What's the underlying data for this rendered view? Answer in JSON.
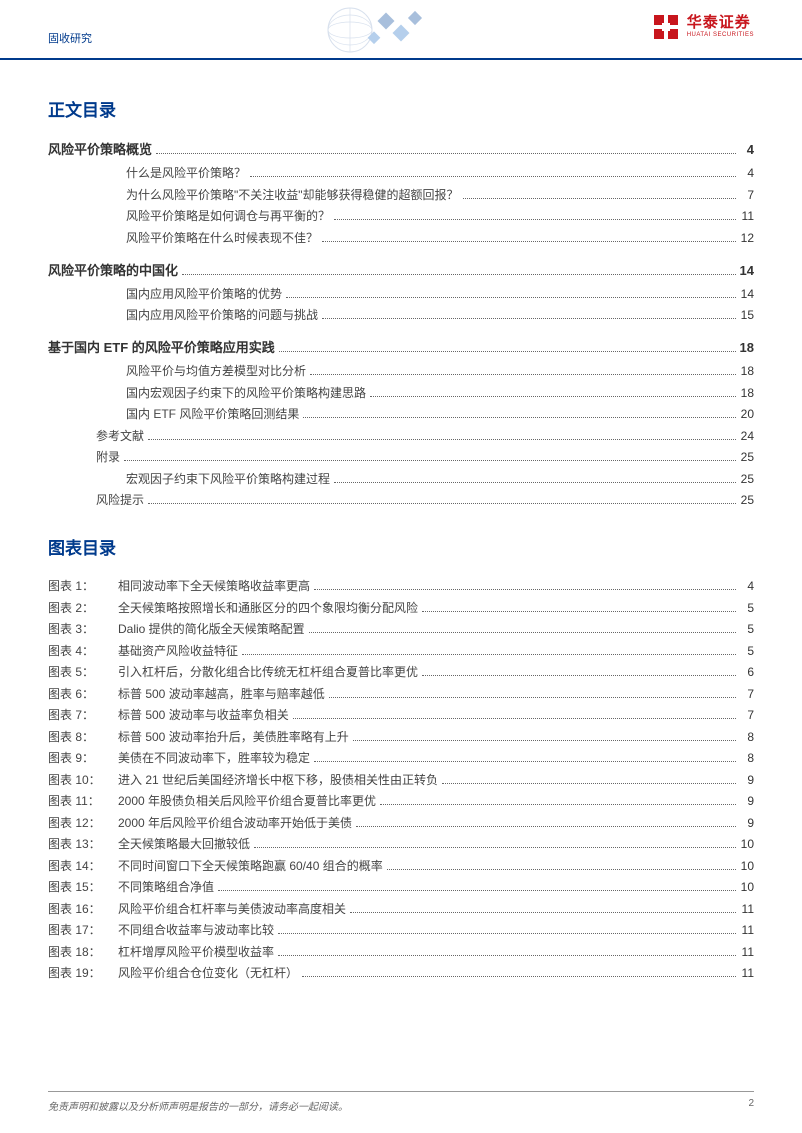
{
  "header": {
    "category": "固收研究",
    "brand_cn": "华泰证券",
    "brand_en": "HUATAI SECURITIES",
    "brand_color": "#c8161d",
    "rule_color": "#003a8c"
  },
  "toc_title": "正文目录",
  "figlist_title": "图表目录",
  "toc": [
    {
      "title": "风险平价策略概览",
      "page": "4",
      "items": [
        {
          "t": "什么是风险平价策略？",
          "p": "4"
        },
        {
          "t": "为什么风险平价策略\"不关注收益\"却能够获得稳健的超额回报？",
          "p": "7"
        },
        {
          "t": "风险平价策略是如何调仓与再平衡的？",
          "p": "11"
        },
        {
          "t": "风险平价策略在什么时候表现不佳？",
          "p": "12"
        }
      ]
    },
    {
      "title": "风险平价策略的中国化",
      "page": "14",
      "items": [
        {
          "t": "国内应用风险平价策略的优势",
          "p": "14"
        },
        {
          "t": "国内应用风险平价策略的问题与挑战",
          "p": "15"
        }
      ]
    },
    {
      "title": "基于国内 ETF 的风险平价策略应用实践",
      "page": "18",
      "items": [
        {
          "t": "风险平价与均值方差模型对比分析",
          "p": "18"
        },
        {
          "t": "国内宏观因子约束下的风险平价策略构建思路",
          "p": "18"
        },
        {
          "t": "国内 ETF 风险平价策略回测结果",
          "p": "20"
        },
        {
          "t": "参考文献",
          "p": "24",
          "level": "sub1"
        },
        {
          "t": "附录",
          "p": "25",
          "level": "sub1"
        },
        {
          "t": "宏观因子约束下风险平价策略构建过程",
          "p": "25"
        },
        {
          "t": "风险提示",
          "p": "25",
          "level": "sub1"
        }
      ]
    }
  ],
  "figures": [
    {
      "n": "1",
      "t": "相同波动率下全天候策略收益率更高",
      "p": "4"
    },
    {
      "n": "2",
      "t": "全天候策略按照增长和通胀区分的四个象限均衡分配风险",
      "p": "5"
    },
    {
      "n": "3",
      "t": "Dalio 提供的简化版全天候策略配置",
      "p": "5"
    },
    {
      "n": "4",
      "t": "基础资产风险收益特征",
      "p": "5"
    },
    {
      "n": "5",
      "t": "引入杠杆后，分散化组合比传统无杠杆组合夏普比率更优",
      "p": "6"
    },
    {
      "n": "6",
      "t": "标普 500 波动率越高，胜率与赔率越低",
      "p": "7"
    },
    {
      "n": "7",
      "t": "标普 500 波动率与收益率负相关",
      "p": "7"
    },
    {
      "n": "8",
      "t": "标普 500 波动率抬升后，美债胜率略有上升",
      "p": "8"
    },
    {
      "n": "9",
      "t": "美债在不同波动率下，胜率较为稳定",
      "p": "8"
    },
    {
      "n": "10",
      "t": "进入 21 世纪后美国经济增长中枢下移，股债相关性由正转负",
      "p": "9"
    },
    {
      "n": "11",
      "t": "2000 年股债负相关后风险平价组合夏普比率更优",
      "p": "9"
    },
    {
      "n": "12",
      "t": "2000 年后风险平价组合波动率开始低于美债",
      "p": "9"
    },
    {
      "n": "13",
      "t": "全天候策略最大回撤较低",
      "p": "10"
    },
    {
      "n": "14",
      "t": "不同时间窗口下全天候策略跑赢 60/40 组合的概率",
      "p": "10"
    },
    {
      "n": "15",
      "t": "不同策略组合净值",
      "p": "10"
    },
    {
      "n": "16",
      "t": "风险平价组合杠杆率与美债波动率高度相关",
      "p": "11"
    },
    {
      "n": "17",
      "t": "不同组合收益率与波动率比较",
      "p": "11"
    },
    {
      "n": "18",
      "t": "杠杆增厚风险平价模型收益率",
      "p": "11"
    },
    {
      "n": "19",
      "t": "风险平价组合仓位变化（无杠杆）",
      "p": "11"
    }
  ],
  "fig_label_prefix": "图表 ",
  "fig_label_suffix": "：",
  "footer": {
    "disclaimer": "免责声明和披露以及分析师声明是报告的一部分，请务必一起阅读。",
    "page_number": "2"
  }
}
